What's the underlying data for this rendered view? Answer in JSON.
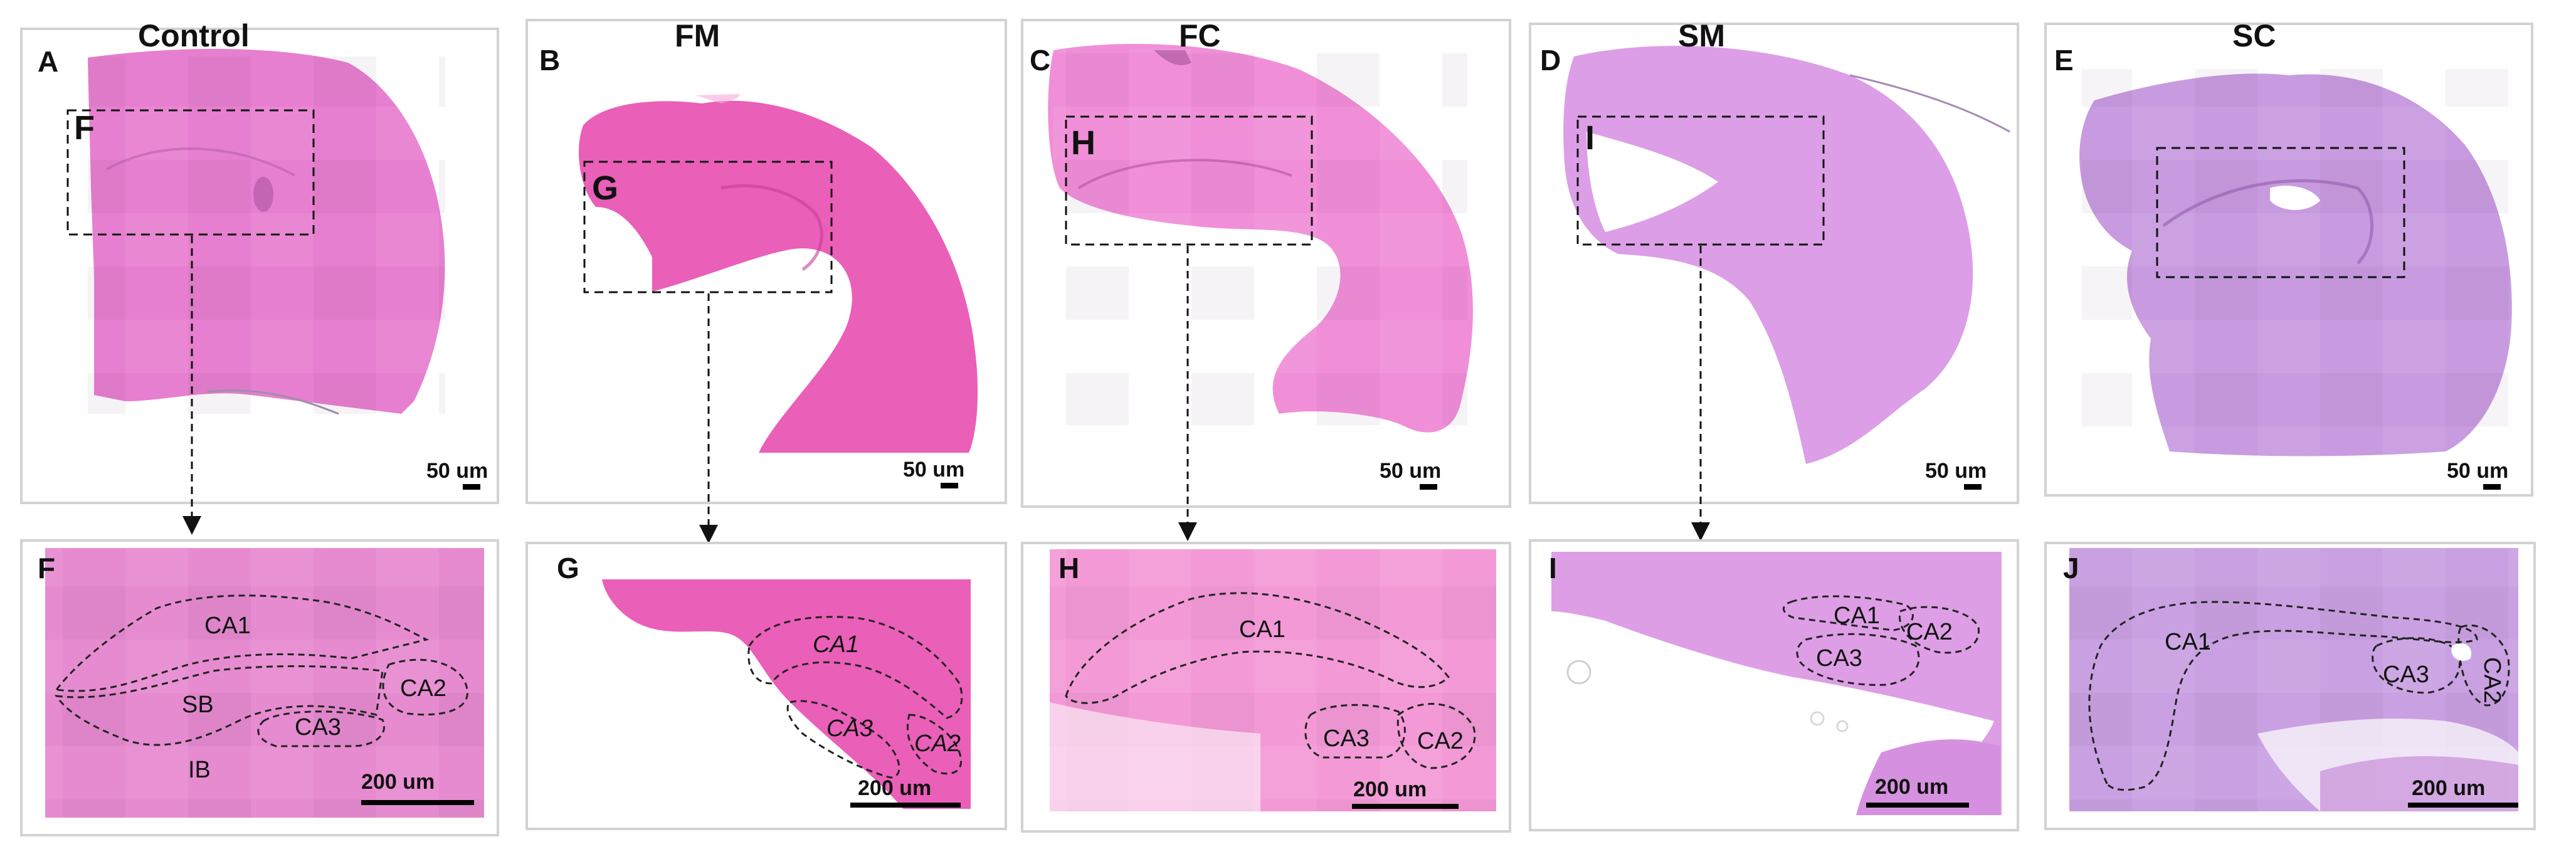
{
  "columns": [
    {
      "header": "Control",
      "panel": "A",
      "zoom_panel": "F",
      "scale_top": "50 um",
      "scale_bottom": "200 um"
    },
    {
      "header": "FM",
      "panel": "B",
      "zoom_panel": "G",
      "scale_top": "50 um",
      "scale_bottom": "200 um"
    },
    {
      "header": "FC",
      "panel": "C",
      "zoom_panel": "H",
      "scale_top": "50 um",
      "scale_bottom": "200 um"
    },
    {
      "header": "SM",
      "panel": "D",
      "zoom_panel": "I",
      "scale_top": "50 um",
      "scale_bottom": "200 um"
    },
    {
      "header": "SC",
      "panel": "E",
      "zoom_panel": "J",
      "scale_top": "50 um",
      "scale_bottom": "200 um"
    }
  ],
  "regions": {
    "ca1": "CA1",
    "ca2": "CA2",
    "ca3": "CA3",
    "sb": "SB",
    "ib": "IB"
  },
  "colors": {
    "tissue_control": "#e77fd0",
    "tissue_fm": "#ea5fb8",
    "tissue_fc": "#f08fd8",
    "tissue_sm": "#dc9ee6",
    "tissue_sc": "#c89be0"
  }
}
